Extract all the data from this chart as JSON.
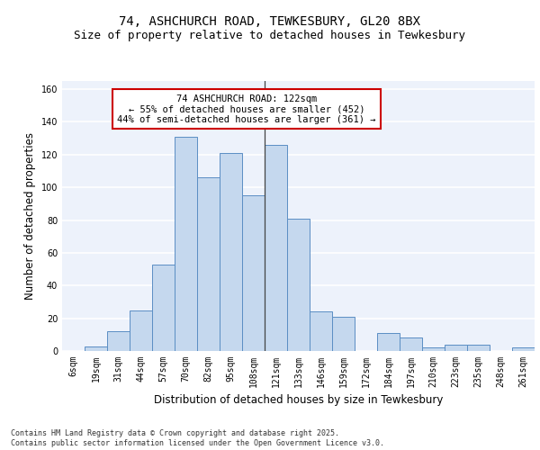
{
  "title_line1": "74, ASHCHURCH ROAD, TEWKESBURY, GL20 8BX",
  "title_line2": "Size of property relative to detached houses in Tewkesbury",
  "xlabel": "Distribution of detached houses by size in Tewkesbury",
  "ylabel": "Number of detached properties",
  "categories": [
    "6sqm",
    "19sqm",
    "31sqm",
    "44sqm",
    "57sqm",
    "70sqm",
    "82sqm",
    "95sqm",
    "108sqm",
    "121sqm",
    "133sqm",
    "146sqm",
    "159sqm",
    "172sqm",
    "184sqm",
    "197sqm",
    "210sqm",
    "223sqm",
    "235sqm",
    "248sqm",
    "261sqm"
  ],
  "values": [
    0,
    3,
    12,
    25,
    53,
    131,
    106,
    121,
    95,
    126,
    81,
    24,
    21,
    0,
    11,
    8,
    2,
    4,
    4,
    0,
    2
  ],
  "bar_color": "#c5d8ee",
  "bar_edge_color": "#5b8ec4",
  "background_color": "#edf2fb",
  "grid_color": "#ffffff",
  "annotation_text": "74 ASHCHURCH ROAD: 122sqm\n← 55% of detached houses are smaller (452)\n44% of semi-detached houses are larger (361) →",
  "annotation_box_color": "#ffffff",
  "annotation_box_edge": "#cc0000",
  "property_line_x": 8.5,
  "ylim": [
    0,
    165
  ],
  "yticks": [
    0,
    20,
    40,
    60,
    80,
    100,
    120,
    140,
    160
  ],
  "footer_text": "Contains HM Land Registry data © Crown copyright and database right 2025.\nContains public sector information licensed under the Open Government Licence v3.0.",
  "title_fontsize": 10,
  "subtitle_fontsize": 9,
  "tick_fontsize": 7,
  "ylabel_fontsize": 8.5,
  "xlabel_fontsize": 8.5,
  "annotation_fontsize": 7.5,
  "footer_fontsize": 6
}
